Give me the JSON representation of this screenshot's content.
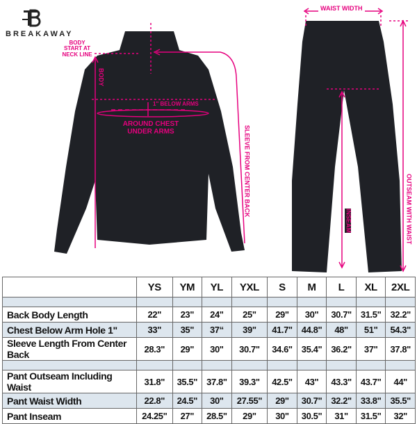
{
  "brand": {
    "name": "BREAKAWAY"
  },
  "annotations": {
    "body_start": "BODY START AT NECK LINE",
    "body": "BODY",
    "below_arms": "1\" BELOW ARMS",
    "around_chest": "AROUND CHEST UNDER ARMS",
    "sleeve": "SLEEVE FROM CENTER BACK",
    "waist_width": "WAIST WIDTH",
    "inseam": "INSEAM",
    "outseam": "OUTSEAM WITH WAIST"
  },
  "colors": {
    "accent": "#e6007e",
    "garment": "#1f2126",
    "shade": "#dde6ee"
  },
  "table": {
    "sizes": [
      "YS",
      "YM",
      "YL",
      "YXL",
      "S",
      "M",
      "L",
      "XL",
      "2XL"
    ],
    "rows": [
      {
        "label": "Back Body Length",
        "values": [
          "22\"",
          "23\"",
          "24\"",
          "25\"",
          "29\"",
          "30\"",
          "30.7\"",
          "31.5\"",
          "32.2\""
        ]
      },
      {
        "label": "Chest Below Arm Hole 1\"",
        "values": [
          "33\"",
          "35\"",
          "37“",
          "39\"",
          "41.7\"",
          "44.8\"",
          "48\"",
          "51\"",
          "54.3\""
        ]
      },
      {
        "label": "Sleeve Length From Center Back",
        "values": [
          "28.3\"",
          "29\"",
          "30\"",
          "30.7\"",
          "34.6\"",
          "35.4\"",
          "36.2\"",
          "37\"",
          "37.8\""
        ]
      },
      {
        "label": "Pant Outseam Including Waist",
        "values": [
          "31.8\"",
          "35.5\"",
          "37.8\"",
          "39.3\"",
          "42.5\"",
          "43\"",
          "43.3\"",
          "43.7\"",
          "44\""
        ]
      },
      {
        "label": "Pant Waist Width",
        "values": [
          "22.8\"",
          "24.5\"",
          "30\"",
          "27.55\"",
          "29\"",
          "30.7\"",
          "32.2\"",
          "33.8\"",
          "35.5\""
        ]
      },
      {
        "label": "Pant Inseam",
        "values": [
          "24.25\"",
          "27\"",
          "28.5\"",
          "29\"",
          "30\"",
          "30.5\"",
          "31\"",
          "31.5\"",
          "32\""
        ]
      }
    ]
  }
}
